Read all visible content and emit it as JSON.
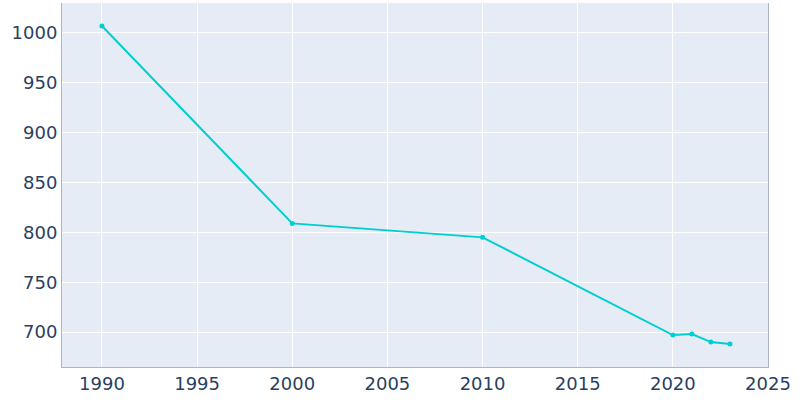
{
  "chart_data": {
    "type": "line",
    "x": [
      1990,
      2000,
      2010,
      2020,
      2021,
      2022,
      2023
    ],
    "values": [
      1007,
      809,
      795,
      697,
      698,
      690,
      688
    ],
    "color": "#00ced1",
    "marker": "circle",
    "xlim": [
      1987.9,
      2025
    ],
    "xticks": [
      1990,
      1995,
      2000,
      2005,
      2010,
      2015,
      2020,
      2025
    ],
    "ylim": [
      665,
      1030
    ],
    "yticks": [
      700,
      750,
      800,
      850,
      900,
      950,
      1000
    ],
    "grid": true
  }
}
